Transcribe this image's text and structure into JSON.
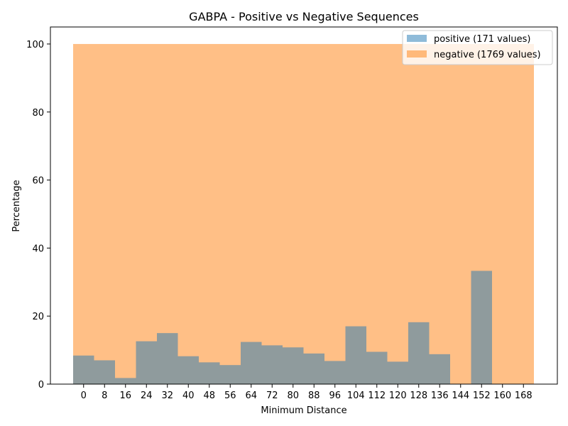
{
  "chart_data": {
    "type": "bar",
    "title": "GABPA - Positive vs Negative Sequences",
    "xlabel": "Minimum Distance",
    "ylabel": "Percentage",
    "ylim": [
      0,
      105
    ],
    "yticks": [
      0,
      20,
      40,
      60,
      80,
      100
    ],
    "categories": [
      "0",
      "8",
      "16",
      "24",
      "32",
      "40",
      "48",
      "56",
      "64",
      "72",
      "80",
      "88",
      "96",
      "104",
      "112",
      "120",
      "128",
      "136",
      "144",
      "152",
      "160",
      "168"
    ],
    "series": [
      {
        "name": "positive (171 values)",
        "color": "#1f77b4",
        "opacity": 0.5,
        "values": [
          8.4,
          7.0,
          1.8,
          12.6,
          15.0,
          8.2,
          6.4,
          5.6,
          12.4,
          11.4,
          10.8,
          9.0,
          6.8,
          17.0,
          9.5,
          6.6,
          18.2,
          8.8,
          0,
          33.3,
          0,
          0
        ]
      },
      {
        "name": "negative (1769 values)",
        "color": "#ff7f0e",
        "opacity": 0.5,
        "values": [
          100,
          100,
          100,
          100,
          100,
          100,
          100,
          100,
          100,
          100,
          100,
          100,
          100,
          100,
          100,
          100,
          100,
          100,
          100,
          100,
          100,
          100
        ]
      }
    ],
    "grid": false,
    "legend_position": "top-right"
  }
}
